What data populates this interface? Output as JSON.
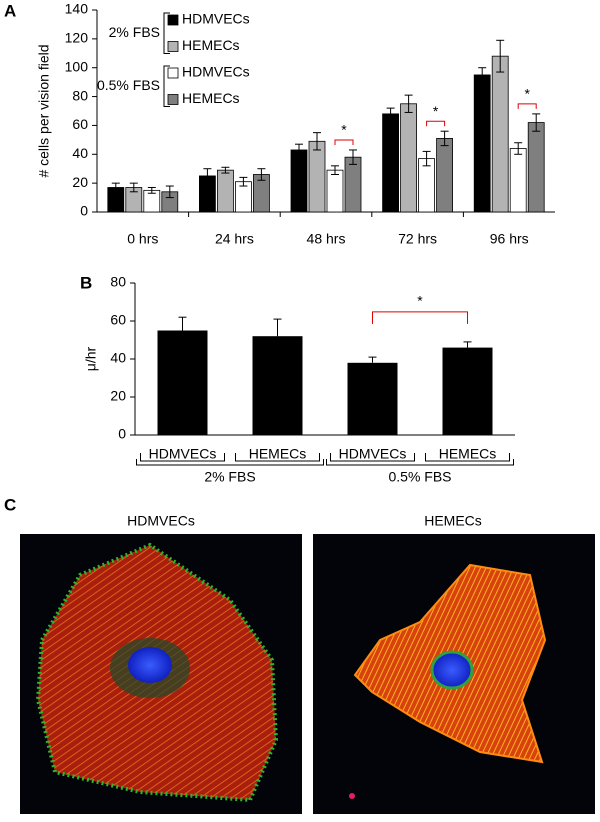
{
  "chart_data": [
    {
      "type": "bar",
      "label": "A",
      "y_label": "# cells per vision field",
      "categories": [
        "0 hrs",
        "24 hrs",
        "48 hrs",
        "72 hrs",
        "96 hrs"
      ],
      "legend_groups": [
        "2% FBS",
        "0.5% FBS"
      ],
      "series": [
        {
          "name": "HDMVECs",
          "group": "2% FBS",
          "color": "#000000",
          "values": [
            17,
            25,
            43,
            68,
            95
          ],
          "errors": [
            3,
            5,
            4,
            4,
            5
          ]
        },
        {
          "name": "HEMECs",
          "group": "2% FBS",
          "color": "#b3b3b3",
          "values": [
            17,
            29,
            49,
            75,
            108
          ],
          "errors": [
            3,
            2,
            6,
            6,
            11
          ]
        },
        {
          "name": "HDMVECs",
          "group": "0.5% FBS",
          "color": "#ffffff",
          "values": [
            15,
            21,
            29,
            37,
            44
          ],
          "errors": [
            2,
            3,
            3,
            5,
            4
          ]
        },
        {
          "name": "HEMECs",
          "group": "0.5% FBS",
          "color": "#7f7f7f",
          "values": [
            14,
            26,
            38,
            51,
            62
          ],
          "errors": [
            4,
            4,
            5,
            5,
            6
          ]
        }
      ],
      "significance": [
        {
          "label": "*",
          "category": 2,
          "series": [
            2,
            3
          ]
        },
        {
          "label": "*",
          "category": 3,
          "series": [
            2,
            3
          ]
        },
        {
          "label": "*",
          "category": 4,
          "series": [
            2,
            3
          ]
        }
      ],
      "ylim": [
        0,
        140
      ],
      "yticks": [
        0,
        20,
        40,
        60,
        80,
        100,
        120,
        140
      ]
    },
    {
      "type": "bar",
      "label": "B",
      "y_label": "μ/hr",
      "categories": [
        "HDMVECs",
        "HEMECs",
        "HDMVECs",
        "HEMECs"
      ],
      "groups": [
        "2% FBS",
        "0.5% FBS"
      ],
      "values": [
        55,
        52,
        38,
        46
      ],
      "errors": [
        7,
        9,
        3,
        3
      ],
      "color": "#000000",
      "significance": [
        {
          "label": "*",
          "categories": [
            2,
            3
          ]
        }
      ],
      "ylim": [
        0,
        80
      ],
      "yticks": [
        0,
        20,
        40,
        60,
        80
      ]
    }
  ],
  "image_panel": {
    "label": "C",
    "images": [
      {
        "title": "HDMVECs"
      },
      {
        "title": "HEMECs"
      }
    ]
  }
}
